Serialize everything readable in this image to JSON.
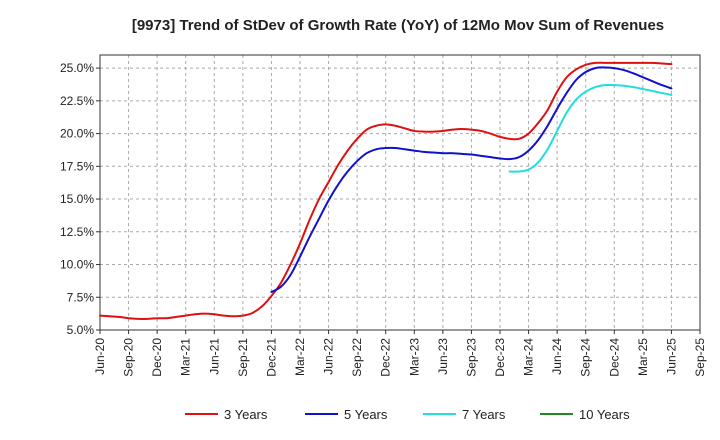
{
  "chart_data": {
    "type": "line",
    "title": "[9973]  Trend of StDev of Growth Rate (YoY) of 12Mo Mov Sum of Revenues",
    "xlabel": "",
    "ylabel": "",
    "ylim": [
      5.0,
      26.0
    ],
    "y_ticks": [
      5.0,
      7.5,
      10.0,
      12.5,
      15.0,
      17.5,
      20.0,
      22.5,
      25.0
    ],
    "y_tick_labels": [
      "5.0%",
      "7.5%",
      "10.0%",
      "12.5%",
      "15.0%",
      "17.5%",
      "20.0%",
      "22.5%",
      "25.0%"
    ],
    "x_tick_labels": [
      "Jun-20",
      "Sep-20",
      "Dec-20",
      "Mar-21",
      "Jun-21",
      "Sep-21",
      "Dec-21",
      "Mar-22",
      "Jun-22",
      "Sep-22",
      "Dec-22",
      "Mar-23",
      "Jun-23",
      "Sep-23",
      "Dec-23",
      "Mar-24",
      "Jun-24",
      "Sep-24",
      "Dec-24",
      "Mar-25",
      "Jun-25",
      "Sep-25"
    ],
    "x_range_months": [
      0,
      63
    ],
    "grid": true,
    "legend_position": "bottom",
    "series": [
      {
        "name": "3 Years",
        "color": "#dd1111",
        "points": [
          [
            0,
            6.1
          ],
          [
            1,
            6.05
          ],
          [
            2,
            6.0
          ],
          [
            3,
            5.9
          ],
          [
            4,
            5.85
          ],
          [
            5,
            5.85
          ],
          [
            6,
            5.9
          ],
          [
            7,
            5.9
          ],
          [
            8,
            6.0
          ],
          [
            9,
            6.1
          ],
          [
            10,
            6.2
          ],
          [
            11,
            6.25
          ],
          [
            12,
            6.2
          ],
          [
            13,
            6.1
          ],
          [
            14,
            6.05
          ],
          [
            15,
            6.1
          ],
          [
            16,
            6.3
          ],
          [
            17,
            6.8
          ],
          [
            18,
            7.6
          ],
          [
            19,
            8.6
          ],
          [
            20,
            10.0
          ],
          [
            21,
            11.6
          ],
          [
            22,
            13.4
          ],
          [
            23,
            15.0
          ],
          [
            24,
            16.3
          ],
          [
            25,
            17.6
          ],
          [
            26,
            18.7
          ],
          [
            27,
            19.6
          ],
          [
            28,
            20.3
          ],
          [
            29,
            20.6
          ],
          [
            30,
            20.7
          ],
          [
            31,
            20.6
          ],
          [
            32,
            20.4
          ],
          [
            33,
            20.2
          ],
          [
            34,
            20.15
          ],
          [
            35,
            20.15
          ],
          [
            36,
            20.2
          ],
          [
            37,
            20.3
          ],
          [
            38,
            20.35
          ],
          [
            39,
            20.3
          ],
          [
            40,
            20.2
          ],
          [
            41,
            20.0
          ],
          [
            42,
            19.75
          ],
          [
            43,
            19.6
          ],
          [
            44,
            19.6
          ],
          [
            45,
            20.0
          ],
          [
            46,
            20.8
          ],
          [
            47,
            21.8
          ],
          [
            48,
            23.2
          ],
          [
            49,
            24.3
          ],
          [
            50,
            24.9
          ],
          [
            51,
            25.25
          ],
          [
            52,
            25.4
          ],
          [
            53,
            25.4
          ],
          [
            54,
            25.4
          ],
          [
            55,
            25.4
          ],
          [
            56,
            25.4
          ],
          [
            57,
            25.4
          ],
          [
            58,
            25.4
          ],
          [
            59,
            25.35
          ],
          [
            60,
            25.3
          ]
        ]
      },
      {
        "name": "5 Years",
        "color": "#1111cc",
        "points": [
          [
            18,
            7.9
          ],
          [
            19,
            8.3
          ],
          [
            20,
            9.2
          ],
          [
            21,
            10.6
          ],
          [
            22,
            12.1
          ],
          [
            23,
            13.5
          ],
          [
            24,
            14.9
          ],
          [
            25,
            16.1
          ],
          [
            26,
            17.1
          ],
          [
            27,
            17.9
          ],
          [
            28,
            18.5
          ],
          [
            29,
            18.8
          ],
          [
            30,
            18.9
          ],
          [
            31,
            18.9
          ],
          [
            32,
            18.8
          ],
          [
            33,
            18.7
          ],
          [
            34,
            18.6
          ],
          [
            35,
            18.55
          ],
          [
            36,
            18.5
          ],
          [
            37,
            18.5
          ],
          [
            38,
            18.45
          ],
          [
            39,
            18.4
          ],
          [
            40,
            18.3
          ],
          [
            41,
            18.2
          ],
          [
            42,
            18.1
          ],
          [
            43,
            18.05
          ],
          [
            44,
            18.2
          ],
          [
            45,
            18.7
          ],
          [
            46,
            19.5
          ],
          [
            47,
            20.6
          ],
          [
            48,
            21.9
          ],
          [
            49,
            23.1
          ],
          [
            50,
            24.1
          ],
          [
            51,
            24.7
          ],
          [
            52,
            25.0
          ],
          [
            53,
            25.05
          ],
          [
            54,
            25.0
          ],
          [
            55,
            24.85
          ],
          [
            56,
            24.6
          ],
          [
            57,
            24.3
          ],
          [
            58,
            24.0
          ],
          [
            59,
            23.7
          ],
          [
            60,
            23.45
          ]
        ]
      },
      {
        "name": "7 Years",
        "color": "#22dddd",
        "points": [
          [
            43,
            17.1
          ],
          [
            44,
            17.1
          ],
          [
            45,
            17.25
          ],
          [
            46,
            17.8
          ],
          [
            47,
            18.8
          ],
          [
            48,
            20.2
          ],
          [
            49,
            21.6
          ],
          [
            50,
            22.6
          ],
          [
            51,
            23.2
          ],
          [
            52,
            23.55
          ],
          [
            53,
            23.7
          ],
          [
            54,
            23.7
          ],
          [
            55,
            23.65
          ],
          [
            56,
            23.55
          ],
          [
            57,
            23.4
          ],
          [
            58,
            23.25
          ],
          [
            59,
            23.1
          ],
          [
            60,
            22.95
          ]
        ]
      },
      {
        "name": "10 Years",
        "color": "#228822",
        "points": []
      }
    ]
  }
}
